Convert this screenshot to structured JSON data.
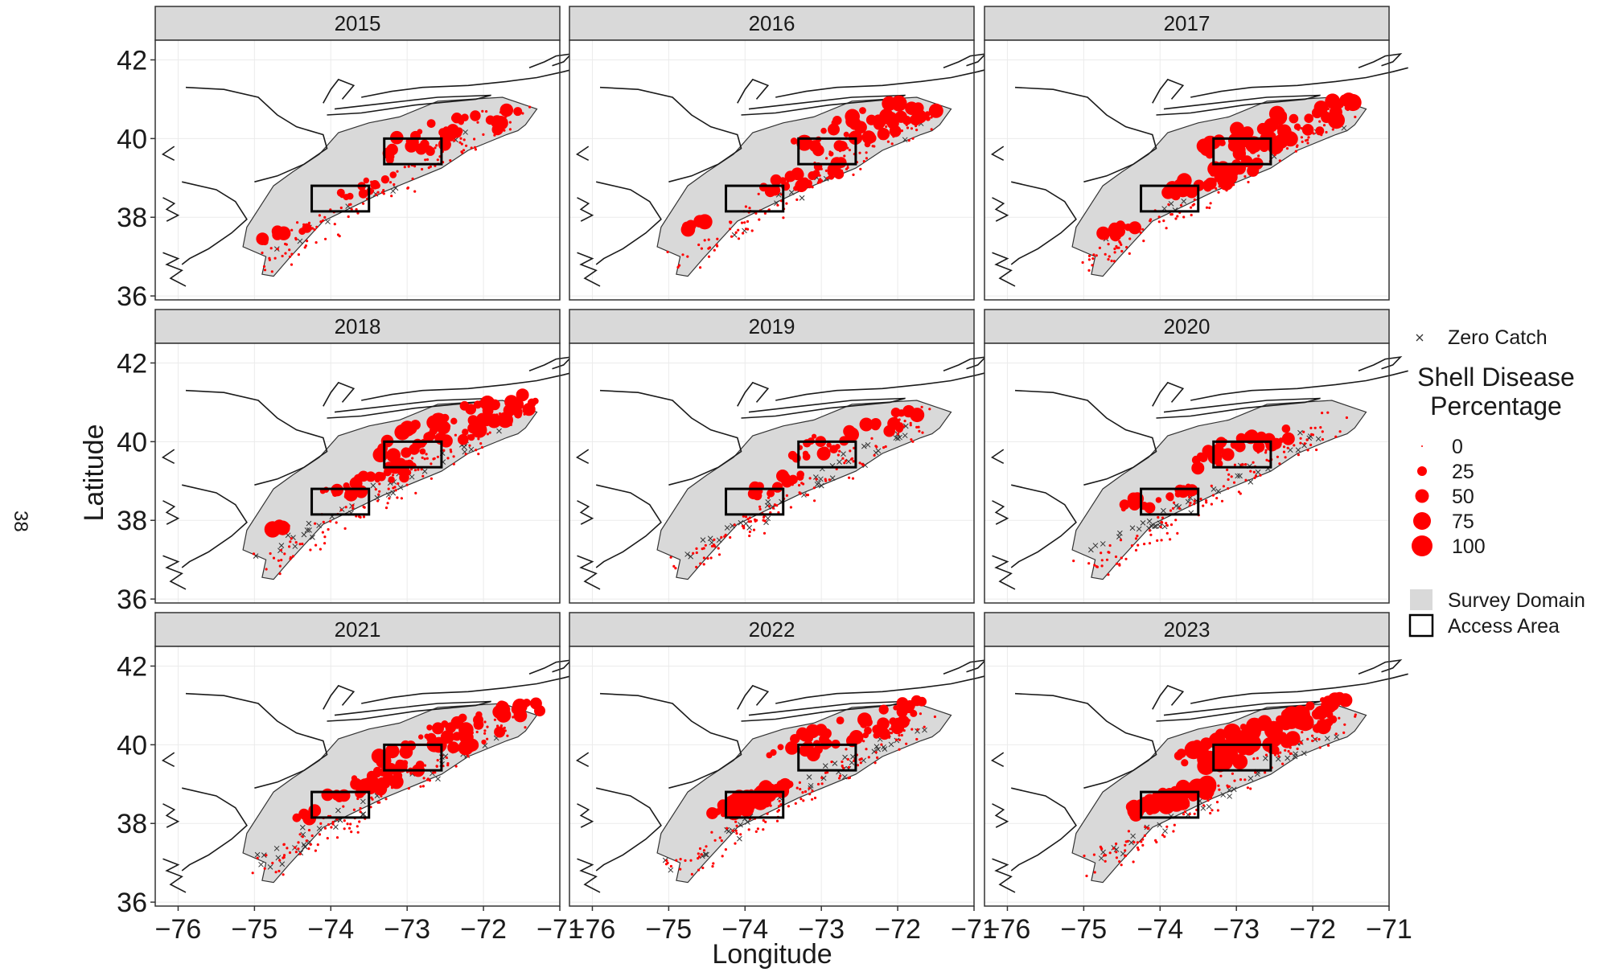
{
  "page_number": "38",
  "chart_data": {
    "type": "scatter",
    "subtype": "faceted point map",
    "xlabel": "Longitude",
    "ylabel": "Latitude",
    "xlim": [
      -76.3,
      -71.0
    ],
    "ylim": [
      35.9,
      42.5
    ],
    "xticks": [
      -76,
      -75,
      -74,
      -73,
      -72,
      -71
    ],
    "xtick_labels": [
      "−76",
      "−75",
      "−74",
      "−73",
      "−72",
      "−71"
    ],
    "yticks": [
      36,
      38,
      40,
      42
    ],
    "ytick_labels": [
      "36",
      "38",
      "40",
      "42"
    ],
    "grid": true,
    "point_color": "#ff0000",
    "zero_catch_color": "#333333",
    "domain_fill": "#d9d9d9",
    "panels": [
      "2015",
      "2016",
      "2017",
      "2018",
      "2019",
      "2020",
      "2021",
      "2022",
      "2023"
    ],
    "legend": {
      "position": "right",
      "zero_catch_label": "Zero Catch",
      "size_title": [
        "Shell Disease",
        "Percentage"
      ],
      "size_values": [
        "0",
        "25",
        "50",
        "75",
        "100"
      ],
      "survey_domain_label": "Survey Domain",
      "access_area_label": "Access Area"
    },
    "access_areas": [
      {
        "lon_range": [
          -74.25,
          -73.5
        ],
        "lat_range": [
          38.15,
          38.8
        ]
      },
      {
        "lon_range": [
          -73.3,
          -72.55
        ],
        "lat_range": [
          39.35,
          40.0
        ]
      }
    ]
  }
}
